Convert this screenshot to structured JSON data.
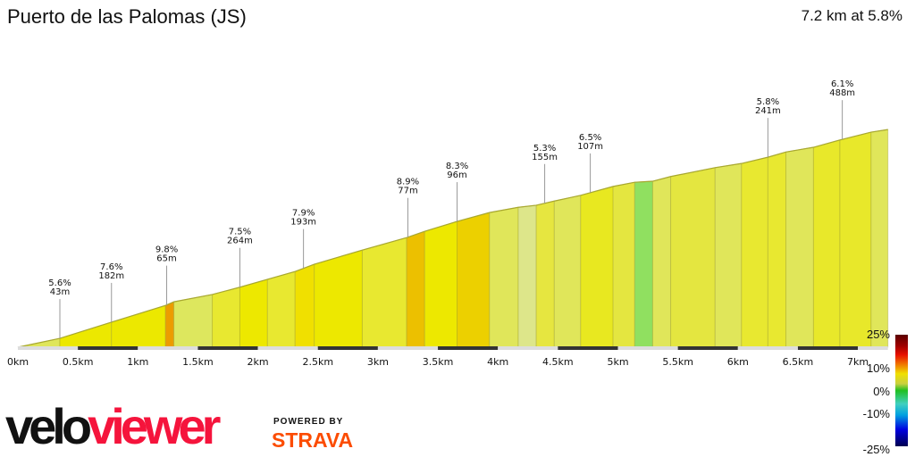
{
  "header": {
    "title": "Puerto de las Palomas (JS)",
    "summary": "7.2 km at 5.8%"
  },
  "chart_data": {
    "type": "area",
    "xlabel": "",
    "ylabel": "",
    "xlim": [
      0,
      7.25
    ],
    "x_ticks": [
      "0km",
      "0.5km",
      "1km",
      "1.5km",
      "2km",
      "2.5km",
      "3km",
      "3.5km",
      "4km",
      "4.5km",
      "5km",
      "5.5km",
      "6km",
      "6.5km",
      "7km"
    ],
    "profile": {
      "distance_km": [
        0,
        0.35,
        0.78,
        1.23,
        1.3,
        1.62,
        1.85,
        2.08,
        2.31,
        2.47,
        2.87,
        3.24,
        3.39,
        3.66,
        3.93,
        4.17,
        4.32,
        4.47,
        4.69,
        4.96,
        5.14,
        5.29,
        5.44,
        5.81,
        6.03,
        6.25,
        6.4,
        6.63,
        6.85,
        7.11,
        7.25
      ],
      "elevation_gain_m": [
        0,
        17,
        48,
        80,
        87,
        101,
        115,
        130,
        145,
        159,
        186,
        210,
        222,
        241,
        258,
        268,
        272,
        280,
        291,
        308,
        316,
        318,
        327,
        344,
        352,
        364,
        374,
        383,
        397,
        412,
        417
      ],
      "segment_colors": [
        "#dfe65a",
        "#ece800",
        "#ece800",
        "#ec9c00",
        "#dde75e",
        "#e8e830",
        "#ede800",
        "#e8e830",
        "#f0e000",
        "#ede800",
        "#e8e830",
        "#ecc000",
        "#ede800",
        "#ecd000",
        "#e0e65a",
        "#dde68a",
        "#e6e640",
        "#e0e65a",
        "#e8e820",
        "#e4e640",
        "#90e060",
        "#e0e65a",
        "#e4e640",
        "#e0e65a",
        "#e8e830",
        "#e8e830",
        "#e0e65a",
        "#e8e82a",
        "#e8e82a",
        "#e0e65a"
      ]
    },
    "annotations": [
      {
        "km": 0.35,
        "grade": "5.6%",
        "length": "43m"
      },
      {
        "km": 0.78,
        "grade": "7.6%",
        "length": "182m"
      },
      {
        "km": 1.24,
        "grade": "9.8%",
        "length": "65m"
      },
      {
        "km": 1.85,
        "grade": "7.5%",
        "length": "264m"
      },
      {
        "km": 2.38,
        "grade": "7.9%",
        "length": "193m"
      },
      {
        "km": 3.25,
        "grade": "8.9%",
        "length": "77m"
      },
      {
        "km": 3.66,
        "grade": "8.3%",
        "length": "96m"
      },
      {
        "km": 4.39,
        "grade": "5.3%",
        "length": "155m"
      },
      {
        "km": 4.77,
        "grade": "6.5%",
        "length": "107m"
      },
      {
        "km": 6.25,
        "grade": "5.8%",
        "length": "241m"
      },
      {
        "km": 6.87,
        "grade": "6.1%",
        "length": "488m"
      }
    ],
    "legend": {
      "title": "",
      "labels": [
        "25%",
        "10%",
        "0%",
        "-10%",
        "-25%"
      ]
    }
  },
  "branding": {
    "logo_part1": "velo",
    "logo_part2": "viewer",
    "powered_by": "POWERED BY",
    "strava": "STRAVA"
  }
}
